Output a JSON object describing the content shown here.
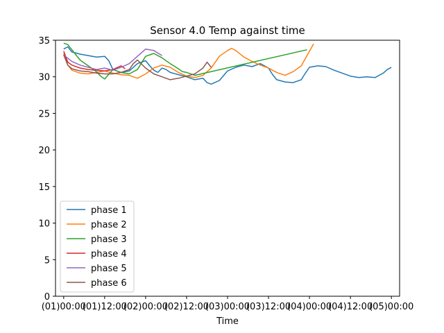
{
  "chart_data": {
    "type": "line",
    "title": "Sensor 4.0 Temp against  time",
    "xlabel": "Time",
    "ylabel": "",
    "xlim": [
      -0.1,
      4.1
    ],
    "ylim": [
      0,
      35
    ],
    "x_unit": "days",
    "x_ticks": [
      {
        "value": 0.0,
        "label": "(01)00:00"
      },
      {
        "value": 0.5,
        "label": "(01)12:00"
      },
      {
        "value": 1.0,
        "label": "(02)00:00"
      },
      {
        "value": 1.5,
        "label": "(02)12:00"
      },
      {
        "value": 2.0,
        "label": "(03)00:00"
      },
      {
        "value": 2.5,
        "label": "(03)12:00"
      },
      {
        "value": 3.0,
        "label": "(04)00:00"
      },
      {
        "value": 3.5,
        "label": "(04)12:00"
      },
      {
        "value": 4.0,
        "label": "(05)00:00"
      }
    ],
    "y_ticks": [
      0,
      5,
      10,
      15,
      20,
      25,
      30,
      35
    ],
    "grid": false,
    "legend": "lower-left",
    "series": [
      {
        "name": "phase 1",
        "color": "#1f77b4",
        "x": [
          0.0,
          0.05,
          0.1,
          0.2,
          0.3,
          0.4,
          0.5,
          0.55,
          0.6,
          0.7,
          0.8,
          0.9,
          1.0,
          1.05,
          1.1,
          1.15,
          1.2,
          1.25,
          1.3,
          1.4,
          1.5,
          1.6,
          1.7,
          1.75,
          1.8,
          1.9,
          2.0,
          2.1,
          2.2,
          2.3,
          2.4,
          2.5,
          2.55,
          2.6,
          2.7,
          2.8,
          2.9,
          2.95,
          3.0,
          3.1,
          3.2,
          3.3,
          3.4,
          3.5,
          3.6,
          3.7,
          3.8,
          3.9,
          3.95,
          4.0
        ],
        "y": [
          33.8,
          34.1,
          33.4,
          33.1,
          32.9,
          32.7,
          32.8,
          32.2,
          31.0,
          30.6,
          30.8,
          31.8,
          32.2,
          31.5,
          30.9,
          30.6,
          31.2,
          31.0,
          30.6,
          30.3,
          30.0,
          29.6,
          29.8,
          29.2,
          29.0,
          29.5,
          30.8,
          31.3,
          31.6,
          31.4,
          31.8,
          31.2,
          30.3,
          29.6,
          29.3,
          29.2,
          29.6,
          30.5,
          31.3,
          31.5,
          31.4,
          30.9,
          30.5,
          30.1,
          29.9,
          30.0,
          29.9,
          30.5,
          31.0,
          31.3
        ]
      },
      {
        "name": "phase 2",
        "color": "#ff7f0e",
        "x": [
          0.0,
          0.05,
          0.1,
          0.2,
          0.3,
          0.4,
          0.5,
          0.6,
          0.7,
          0.8,
          0.9,
          1.0,
          1.1,
          1.2,
          1.3,
          1.4,
          1.5,
          1.6,
          1.7,
          1.8,
          1.9,
          2.0,
          2.05,
          2.1,
          2.2,
          2.3,
          2.4,
          2.5,
          2.6,
          2.7,
          2.8,
          2.9,
          3.0,
          3.05
        ],
        "y": [
          33.2,
          31.6,
          30.9,
          30.5,
          30.4,
          30.6,
          30.8,
          30.5,
          30.3,
          30.2,
          29.8,
          30.4,
          31.2,
          31.6,
          31.3,
          30.6,
          30.1,
          29.9,
          30.2,
          31.2,
          32.8,
          33.6,
          33.9,
          33.6,
          32.7,
          32.1,
          31.6,
          31.2,
          30.6,
          30.2,
          30.7,
          31.5,
          33.5,
          34.5
        ]
      },
      {
        "name": "phase 3",
        "color": "#2ca02c",
        "x": [
          0.0,
          0.05,
          0.1,
          0.15,
          0.2,
          0.3,
          0.4,
          0.45,
          0.5,
          0.6,
          0.7,
          0.8,
          0.9,
          1.0,
          1.1,
          1.2,
          1.3,
          1.4,
          1.45,
          1.5,
          1.6,
          2.97
        ],
        "y": [
          34.6,
          34.4,
          33.7,
          33.0,
          32.3,
          31.5,
          30.7,
          30.1,
          29.7,
          31.0,
          30.6,
          30.4,
          31.0,
          32.8,
          33.2,
          32.6,
          31.8,
          31.1,
          30.7,
          30.6,
          30.2,
          33.7
        ]
      },
      {
        "name": "phase 4",
        "color": "#d62728",
        "x": [
          0.0,
          0.05,
          0.1,
          0.2,
          0.3,
          0.4,
          0.5,
          0.6,
          0.7,
          0.75
        ],
        "y": [
          33.5,
          32.0,
          31.6,
          31.2,
          31.0,
          30.9,
          30.8,
          31.0,
          31.5,
          31.1
        ]
      },
      {
        "name": "phase 5",
        "color": "#9467bd",
        "x": [
          0.0,
          0.1,
          0.2,
          0.3,
          0.4,
          0.5,
          0.6,
          0.7,
          0.8,
          0.9,
          1.0,
          1.1,
          1.2
        ],
        "y": [
          33.0,
          32.1,
          31.6,
          31.3,
          31.0,
          31.2,
          30.9,
          31.3,
          31.8,
          32.8,
          33.8,
          33.6,
          32.9
        ]
      },
      {
        "name": "phase 6",
        "color": "#8c564b",
        "x": [
          0.0,
          0.05,
          0.1,
          0.2,
          0.3,
          0.4,
          0.5,
          0.6,
          0.7,
          0.8,
          0.85,
          0.9,
          1.0,
          1.1,
          1.2,
          1.3,
          1.4,
          1.5,
          1.6,
          1.7,
          1.75,
          1.8
        ],
        "y": [
          33.0,
          31.6,
          31.1,
          30.8,
          30.7,
          30.5,
          30.4,
          30.4,
          30.6,
          31.0,
          31.8,
          32.3,
          31.2,
          30.4,
          30.0,
          29.6,
          29.8,
          30.1,
          30.4,
          31.2,
          32.0,
          31.3
        ]
      }
    ]
  }
}
